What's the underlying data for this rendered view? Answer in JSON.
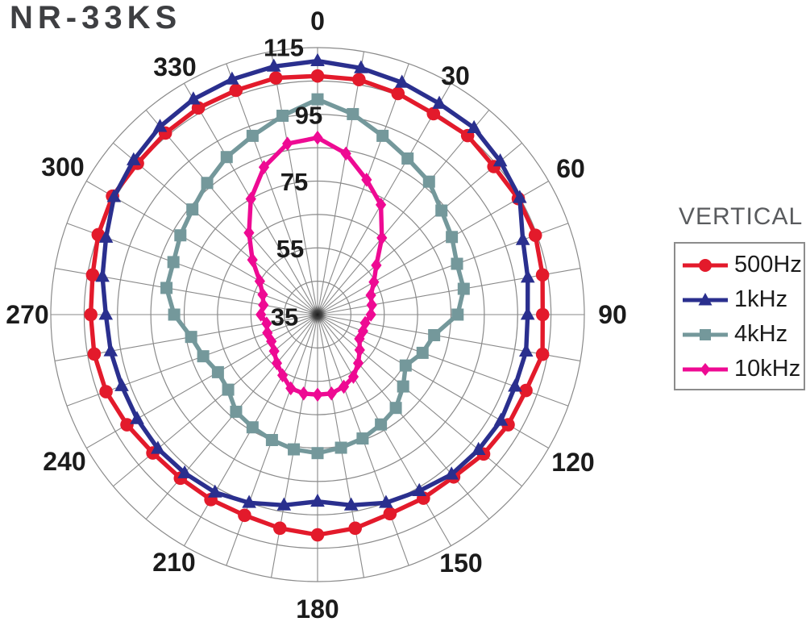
{
  "title": "NR-33KS",
  "legend": {
    "title": "VERTICAL",
    "items": [
      {
        "label": "500Hz",
        "color": "#e31a2b",
        "marker": "circle"
      },
      {
        "label": "1kHz",
        "color": "#2a2f8e",
        "marker": "triangle"
      },
      {
        "label": "4kHz",
        "color": "#74989b",
        "marker": "square"
      },
      {
        "label": "10kHz",
        "color": "#ee0a93",
        "marker": "diamond"
      }
    ]
  },
  "chart_data": {
    "type": "line",
    "subtype": "polar-directivity-pattern",
    "title": "NR-33KS",
    "legend_title": "VERTICAL",
    "angle_unit": "degrees",
    "zero_angle_position": "top",
    "direction": "clockwise",
    "angle_step_deg": 10,
    "angle_tick_labels": [
      "0",
      "30",
      "60",
      "90",
      "120",
      "150",
      "180",
      "210",
      "240",
      "270",
      "300",
      "330"
    ],
    "radial_axis": {
      "min": 35,
      "max": 115,
      "tick_labels": [
        "35",
        "55",
        "75",
        "95",
        "115"
      ],
      "ring_step": 10,
      "rings": 8,
      "spokes_every_deg": 10
    },
    "series": [
      {
        "name": "500Hz",
        "color": "#e31a2b",
        "marker": "circle",
        "values": [
          106.5,
          106.5,
          105.5,
          104.5,
          105,
          104,
          104.5,
          104.5,
          103.5,
          102.5,
          103.5,
          101.5,
          101,
          100,
          98.5,
          98.5,
          98.5,
          100,
          101,
          100,
          99,
          99,
          99,
          99.5,
          101,
          102.5,
          103,
          103,
          103.5,
          105,
          106,
          105.5,
          106,
          106.5,
          106.5,
          107
        ]
      },
      {
        "name": "1kHz",
        "color": "#2a2f8e",
        "marker": "triangle",
        "values": [
          111,
          110,
          109,
          108,
          108,
          106.5,
          105,
          100.5,
          99,
          98,
          98.5,
          98,
          98.5,
          98,
          97.5,
          96,
          95,
          93,
          91,
          93,
          95,
          96.5,
          97,
          97.5,
          97.5,
          97.5,
          98,
          98.5,
          100.5,
          102.5,
          105.5,
          107,
          108.5,
          109.5,
          110,
          110.5
        ]
      },
      {
        "name": "4kHz",
        "color": "#74989b",
        "marker": "square",
        "values": [
          99.5,
          96,
          92,
          89,
          87,
          83.5,
          81.5,
          79.5,
          79.5,
          77,
          70.5,
          68.5,
          65.5,
          68.5,
          71.5,
          73,
          74.5,
          75.5,
          76.5,
          76,
          75,
          74,
          73,
          70,
          69.5,
          71.5,
          73.5,
          78,
          81,
          81,
          82.5,
          84,
          86.5,
          89.5,
          92,
          95.5
        ]
      },
      {
        "name": "10kHz",
        "color": "#ee0a93",
        "marker": "diamond",
        "values": [
          88,
          84,
          78,
          73,
          65,
          58,
          54.5,
          52,
          51.5,
          51,
          49.5,
          49.5,
          49.5,
          51.5,
          54,
          56.5,
          58,
          59,
          59,
          59,
          58.5,
          56,
          54,
          52,
          51,
          51,
          50.5,
          52,
          51.5,
          52.5,
          55,
          60.5,
          67,
          75,
          82,
          87
        ]
      }
    ],
    "grid_color": "#8a8a8a"
  }
}
